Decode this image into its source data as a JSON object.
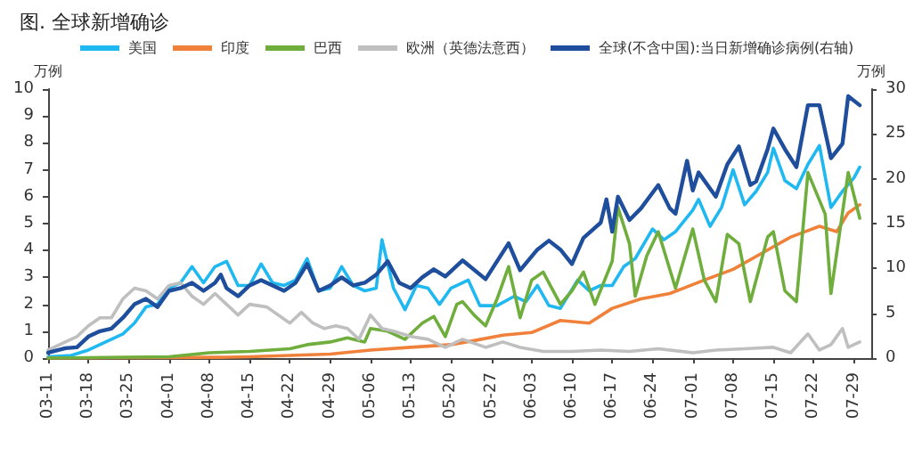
{
  "chart_data": {
    "type": "line",
    "title": "图. 全球新增确诊",
    "ylabel": "万例",
    "y2label": "万例",
    "xlim": [
      "--03-11",
      "--08-01"
    ],
    "xticks": [
      {
        "value": "--03-11",
        "label": "03-11"
      },
      {
        "value": "--03-18",
        "label": "03-18"
      },
      {
        "value": "--03-25",
        "label": "03-25"
      },
      {
        "value": "--04-01",
        "label": "04-01"
      },
      {
        "value": "--04-08",
        "label": "04-08"
      },
      {
        "value": "--04-15",
        "label": "04-15"
      },
      {
        "value": "--04-22",
        "label": "04-22"
      },
      {
        "value": "--04-29",
        "label": "04-29"
      },
      {
        "value": "--05-06",
        "label": "05-06"
      },
      {
        "value": "--05-13",
        "label": "05-13"
      },
      {
        "value": "--05-20",
        "label": "05-20"
      },
      {
        "value": "--05-27",
        "label": "05-27"
      },
      {
        "value": "--06-03",
        "label": "06-03"
      },
      {
        "value": "--06-10",
        "label": "06-10"
      },
      {
        "value": "--06-17",
        "label": "06-17"
      },
      {
        "value": "--06-24",
        "label": "06-24"
      },
      {
        "value": "--07-01",
        "label": "07-01"
      },
      {
        "value": "--07-08",
        "label": "07-08"
      },
      {
        "value": "--07-15",
        "label": "07-15"
      },
      {
        "value": "--07-22",
        "label": "07-22"
      },
      {
        "value": "--07-29",
        "label": "07-29"
      }
    ],
    "ylim": [
      0,
      10
    ],
    "yticks": [
      0,
      1,
      2,
      3,
      4,
      5,
      6,
      7,
      8,
      9,
      10
    ],
    "y2lim": [
      0,
      30
    ],
    "y2ticks": [
      0,
      5,
      10,
      15,
      20,
      25,
      30
    ],
    "grid": false,
    "legend": "top",
    "marker": "none",
    "line_style": "solid",
    "series": [
      {
        "name": "美国",
        "color": "#1fb8f0",
        "x": [
          "--03-11",
          "--03-15",
          "--03-18",
          "--03-21",
          "--03-24",
          "--03-26",
          "--03-28",
          "--03-30",
          "--04-01",
          "--04-03",
          "--04-05",
          "--04-07",
          "--04-09",
          "--04-11",
          "--04-13",
          "--04-15",
          "--04-17",
          "--04-19",
          "--04-21",
          "--04-23",
          "--04-25",
          "--04-27",
          "--04-29",
          "--05-01",
          "--05-03",
          "--05-05",
          "--05-07",
          "--05-08",
          "--05-10",
          "--05-12",
          "--05-14",
          "--05-16",
          "--05-18",
          "--05-20",
          "--05-23",
          "--05-25",
          "--05-28",
          "--05-31",
          "--06-02",
          "--06-04",
          "--06-06",
          "--06-08",
          "--06-11",
          "--06-13",
          "--06-15",
          "--06-17",
          "--06-19",
          "--06-21",
          "--06-24",
          "--06-26",
          "--06-28",
          "--07-01",
          "--07-02",
          "--07-04",
          "--07-06",
          "--07-08",
          "--07-10",
          "--07-12",
          "--07-14",
          "--07-15",
          "--07-17",
          "--07-19",
          "--07-21",
          "--07-23",
          "--07-25",
          "--07-27",
          "--07-29",
          "--07-30"
        ],
        "values": [
          0.05,
          0.1,
          0.3,
          0.6,
          0.9,
          1.3,
          1.9,
          2.0,
          2.6,
          2.8,
          3.4,
          2.8,
          3.4,
          3.6,
          2.7,
          2.7,
          3.5,
          2.8,
          2.7,
          2.9,
          3.7,
          2.5,
          2.6,
          3.4,
          2.7,
          2.5,
          2.6,
          4.4,
          2.6,
          1.8,
          2.7,
          2.6,
          2.0,
          2.6,
          2.9,
          1.95,
          1.95,
          2.3,
          2.1,
          2.7,
          1.95,
          1.85,
          2.9,
          2.5,
          2.7,
          2.7,
          3.4,
          3.7,
          4.8,
          4.4,
          4.7,
          5.5,
          5.9,
          4.9,
          5.6,
          7.0,
          5.7,
          6.2,
          6.9,
          7.8,
          6.6,
          6.3,
          7.2,
          7.9,
          5.6,
          6.2,
          6.7,
          7.1
        ]
      },
      {
        "name": "印度",
        "color": "#f0813a",
        "x": [
          "--03-11",
          "--04-01",
          "--04-10",
          "--04-15",
          "--04-22",
          "--04-29",
          "--05-06",
          "--05-13",
          "--05-20",
          "--05-24",
          "--05-29",
          "--06-03",
          "--06-08",
          "--06-13",
          "--06-17",
          "--06-22",
          "--06-27",
          "--07-03",
          "--07-08",
          "--07-13",
          "--07-18",
          "--07-23",
          "--07-26",
          "--07-28",
          "--07-30"
        ],
        "values": [
          0,
          0.02,
          0.03,
          0.05,
          0.1,
          0.15,
          0.3,
          0.4,
          0.5,
          0.65,
          0.85,
          0.95,
          1.4,
          1.3,
          1.85,
          2.2,
          2.4,
          2.9,
          3.3,
          3.9,
          4.5,
          4.9,
          4.7,
          5.4,
          5.7
        ]
      },
      {
        "name": "巴西",
        "color": "#6fae3c",
        "x": [
          "--03-11",
          "--04-01",
          "--04-08",
          "--04-15",
          "--04-22",
          "--04-25",
          "--04-29",
          "--05-02",
          "--05-05",
          "--05-06",
          "--05-09",
          "--05-12",
          "--05-15",
          "--05-17",
          "--05-19",
          "--05-21",
          "--05-22",
          "--05-24",
          "--05-26",
          "--05-28",
          "--05-30",
          "--06-01",
          "--06-03",
          "--06-05",
          "--06-08",
          "--06-10",
          "--06-12",
          "--06-14",
          "--06-17",
          "--06-18",
          "--06-20",
          "--06-21",
          "--06-23",
          "--06-25",
          "--06-28",
          "--07-01",
          "--07-03",
          "--07-05",
          "--07-07",
          "--07-09",
          "--07-11",
          "--07-14",
          "--07-15",
          "--07-17",
          "--07-19",
          "--07-21",
          "--07-24",
          "--07-25",
          "--07-28",
          "--07-30"
        ],
        "values": [
          0,
          0.05,
          0.2,
          0.25,
          0.35,
          0.5,
          0.6,
          0.75,
          0.6,
          1.1,
          1.0,
          0.7,
          1.3,
          1.55,
          0.8,
          2.0,
          2.1,
          1.6,
          1.2,
          2.2,
          3.4,
          1.5,
          2.9,
          3.2,
          2.0,
          2.5,
          3.2,
          2.0,
          3.6,
          5.6,
          4.25,
          2.3,
          3.8,
          4.7,
          2.6,
          4.8,
          2.9,
          2.1,
          4.6,
          4.25,
          2.1,
          4.5,
          4.7,
          2.5,
          2.1,
          6.9,
          5.35,
          2.4,
          6.9,
          5.2
        ]
      },
      {
        "name": "欧洲（英德法意西）",
        "color": "#bfbfbf",
        "x": [
          "--03-11",
          "--03-14",
          "--03-16",
          "--03-18",
          "--03-20",
          "--03-22",
          "--03-24",
          "--03-26",
          "--03-28",
          "--03-30",
          "--04-01",
          "--04-03",
          "--04-05",
          "--04-07",
          "--04-09",
          "--04-11",
          "--04-13",
          "--04-15",
          "--04-18",
          "--04-20",
          "--04-22",
          "--04-24",
          "--04-26",
          "--04-28",
          "--04-30",
          "--05-02",
          "--05-04",
          "--05-06",
          "--05-08",
          "--05-10",
          "--05-13",
          "--05-16",
          "--05-19",
          "--05-22",
          "--05-26",
          "--05-29",
          "--06-01",
          "--06-05",
          "--06-10",
          "--06-15",
          "--06-20",
          "--06-25",
          "--07-01",
          "--07-05",
          "--07-10",
          "--07-15",
          "--07-18",
          "--07-21",
          "--07-23",
          "--07-25",
          "--07-27",
          "--07-28",
          "--07-30"
        ],
        "values": [
          0.3,
          0.6,
          0.8,
          1.2,
          1.5,
          1.5,
          2.2,
          2.6,
          2.5,
          2.2,
          2.7,
          2.8,
          2.3,
          2.0,
          2.4,
          2.0,
          1.6,
          2.0,
          1.9,
          1.6,
          1.3,
          1.7,
          1.3,
          1.1,
          1.2,
          1.1,
          0.7,
          1.6,
          1.1,
          1.0,
          0.8,
          0.7,
          0.4,
          0.7,
          0.4,
          0.6,
          0.4,
          0.25,
          0.25,
          0.3,
          0.25,
          0.35,
          0.2,
          0.3,
          0.35,
          0.4,
          0.2,
          0.9,
          0.3,
          0.5,
          1.1,
          0.4,
          0.6
        ]
      },
      {
        "name": "全球(不含中国):当日新增确诊病例(右轴)",
        "color": "#1f4e9c",
        "axis": "y2",
        "x": [
          "--03-11",
          "--03-14",
          "--03-16",
          "--03-18",
          "--03-20",
          "--03-22",
          "--03-24",
          "--03-26",
          "--03-28",
          "--03-30",
          "--04-01",
          "--04-03",
          "--04-05",
          "--04-07",
          "--04-09",
          "--04-10",
          "--04-11",
          "--04-13",
          "--04-15",
          "--04-17",
          "--04-19",
          "--04-21",
          "--04-23",
          "--04-25",
          "--04-27",
          "--04-29",
          "--05-01",
          "--05-03",
          "--05-05",
          "--05-07",
          "--05-09",
          "--05-11",
          "--05-13",
          "--05-15",
          "--05-17",
          "--05-19",
          "--05-22",
          "--05-26",
          "--05-30",
          "--06-01",
          "--06-04",
          "--06-06",
          "--06-08",
          "--06-10",
          "--06-12",
          "--06-15",
          "--06-16",
          "--06-17",
          "--06-18",
          "--06-20",
          "--06-22",
          "--06-25",
          "--06-27",
          "--06-28",
          "--06-30",
          "--07-01",
          "--07-02",
          "--07-05",
          "--07-07",
          "--07-09",
          "--07-11",
          "--07-12",
          "--07-14",
          "--07-15",
          "--07-17",
          "--07-19",
          "--07-21",
          "--07-23",
          "--07-25",
          "--07-27",
          "--07-28",
          "--07-30"
        ],
        "values": [
          0.6,
          1.1,
          1.2,
          2.4,
          3.0,
          3.3,
          4.5,
          6.0,
          6.6,
          5.7,
          7.5,
          7.8,
          8.4,
          7.5,
          8.4,
          9.3,
          7.8,
          6.9,
          8.1,
          8.7,
          8.1,
          7.5,
          8.4,
          10.5,
          7.5,
          8.1,
          9.0,
          8.1,
          8.4,
          9.3,
          10.8,
          8.4,
          7.8,
          9.0,
          9.9,
          9.1,
          10.9,
          8.8,
          12.8,
          9.8,
          12.1,
          13.1,
          12.1,
          10.5,
          13.4,
          15.1,
          17.7,
          14.1,
          18.0,
          15.4,
          16.7,
          19.3,
          16.7,
          16.1,
          22.0,
          18.7,
          20.7,
          18.0,
          21.6,
          23.6,
          19.3,
          19.7,
          23.3,
          25.6,
          23.3,
          21.3,
          28.2,
          28.2,
          22.3,
          23.9,
          29.2,
          28.2
        ]
      }
    ]
  }
}
